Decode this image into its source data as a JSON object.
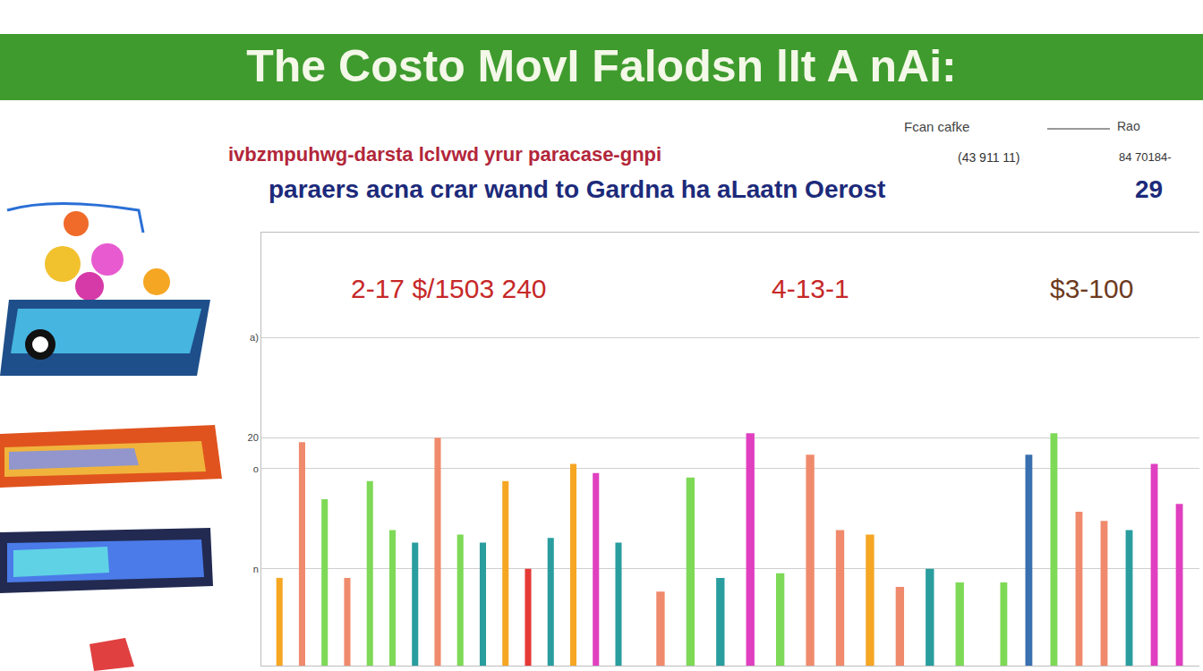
{
  "header": {
    "title": "The Costo MovI Falodsn lIt A nAi:",
    "legend_note": "Fcan cafke",
    "legend_note2": "Rao",
    "line1": "ivbzmpuhwg-darsta lclvwd yrur paracase-gnpi",
    "line1_note": "(43 911 11)",
    "line1_note2": "84 70184-",
    "line2": "paraers acna crar wand to Gardna ha aLaatn Oerost",
    "line2_note": "29"
  },
  "chart_data": [
    {
      "type": "bar",
      "title": "2-17 $/1503 240",
      "categories": [
        null,
        null,
        null,
        null,
        null,
        null,
        null,
        null,
        null,
        null,
        null,
        null,
        null,
        null,
        null,
        null
      ],
      "values": [
        7.7,
        19.6,
        14.6,
        7.7,
        16.2,
        11.9,
        10.8,
        20,
        11.5,
        10.8,
        16.2,
        8.5,
        11.2,
        17.7,
        16.9,
        10.8
      ],
      "colors": [
        "#f5a623",
        "#f08a6c",
        "#7ed957",
        "#f08a6c",
        "#7ed957",
        "#7ed957",
        "#2a9d9f",
        "#f08a6c",
        "#7ed957",
        "#2a9d9f",
        "#f5a623",
        "#e53935",
        "#2a9d9f",
        "#f5a623",
        "#e040c0",
        "#2a9d9f"
      ],
      "ylim": [
        0,
        38
      ],
      "yticks": [
        {
          "value": 8.5,
          "label": "n"
        },
        {
          "value": 17.3,
          "label": "o"
        },
        {
          "value": 20,
          "label": "20"
        },
        {
          "value": 28.8,
          "label": "a)"
        }
      ],
      "grid": true,
      "tick_labels": "y"
    },
    {
      "type": "bar",
      "title": "4-13-1",
      "categories": [
        null,
        null,
        null,
        null,
        null,
        null,
        null,
        null,
        null,
        null,
        null
      ],
      "values": [
        6.5,
        16.5,
        7.7,
        20.4,
        8.1,
        18.5,
        11.9,
        11.5,
        6.9,
        8.5,
        7.3
      ],
      "colors": [
        "#f08a6c",
        "#7ed957",
        "#2a9d9f",
        "#e040c0",
        "#7ed957",
        "#f08a6c",
        "#f08a6c",
        "#f5a623",
        "#f08a6c",
        "#2a9d9f",
        "#7ed957"
      ],
      "ylim": [
        0,
        38
      ],
      "yticks": [
        {
          "value": 8.5,
          "label": "n"
        },
        {
          "value": 17.3,
          "label": "o"
        },
        {
          "value": 20,
          "label": "20"
        },
        {
          "value": 28.8,
          "label": "a)"
        }
      ],
      "grid": true,
      "tick_labels": false
    },
    {
      "type": "bar",
      "title": "$3-100",
      "categories": [
        null,
        null,
        null,
        null,
        null,
        null,
        null,
        null
      ],
      "values": [
        7.3,
        18.5,
        20.4,
        13.5,
        12.7,
        11.9,
        17.7,
        14.2
      ],
      "colors": [
        "#7ed957",
        "#3a6fb0",
        "#7ed957",
        "#f08a6c",
        "#f08a6c",
        "#2a9d9f",
        "#e040c0",
        "#e040c0"
      ],
      "ylim": [
        0,
        38
      ],
      "yticks": [
        {
          "value": 8.5,
          "label": "n"
        },
        {
          "value": 17.3,
          "label": "o"
        },
        {
          "value": 20,
          "label": "20"
        },
        {
          "value": 28.8,
          "label": "a)"
        }
      ],
      "grid": true,
      "tick_labels": false
    }
  ]
}
